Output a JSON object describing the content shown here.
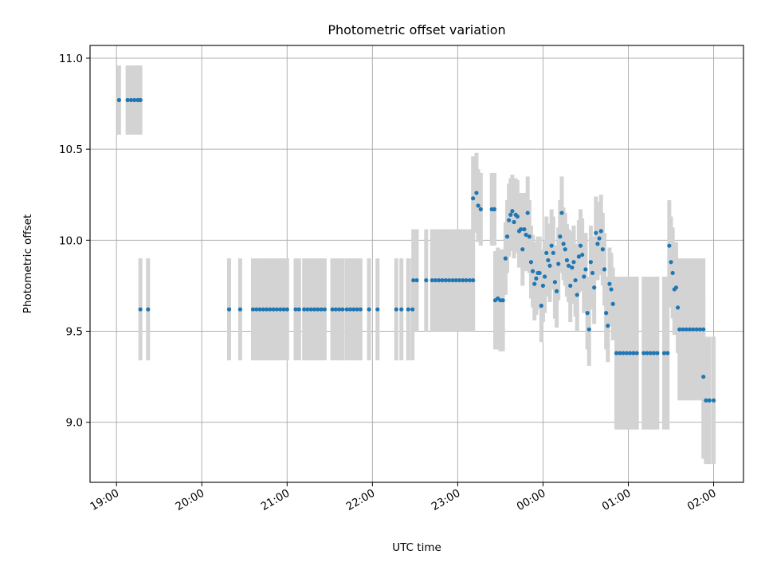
{
  "chart_data": {
    "type": "scatter",
    "title": "Photometric offset variation",
    "xlabel": "UTC time",
    "ylabel": "Photometric offset",
    "x_unit": "hours (UTC, continuing past midnight)",
    "xlim": [
      18.69,
      26.35
    ],
    "ylim": [
      8.67,
      11.07
    ],
    "x_ticks": [
      {
        "value": 19,
        "label": "19:00"
      },
      {
        "value": 20,
        "label": "20:00"
      },
      {
        "value": 21,
        "label": "21:00"
      },
      {
        "value": 22,
        "label": "22:00"
      },
      {
        "value": 23,
        "label": "23:00"
      },
      {
        "value": 24,
        "label": "00:00"
      },
      {
        "value": 25,
        "label": "01:00"
      },
      {
        "value": 26,
        "label": "02:00"
      }
    ],
    "y_ticks": [
      {
        "value": 9.0,
        "label": "9.0"
      },
      {
        "value": 9.5,
        "label": "9.5"
      },
      {
        "value": 10.0,
        "label": "10.0"
      },
      {
        "value": 10.5,
        "label": "10.5"
      },
      {
        "value": 11.0,
        "label": "11.0"
      }
    ],
    "grid": true,
    "point_color": "#1f77b4",
    "errorbar_color": "#d3d3d3",
    "points": [
      [
        19.03,
        10.77,
        0.19
      ],
      [
        19.13,
        10.77,
        0.19
      ],
      [
        19.17,
        10.77,
        0.19
      ],
      [
        19.21,
        10.77,
        0.19
      ],
      [
        19.25,
        10.77,
        0.19
      ],
      [
        19.28,
        10.77,
        0.19
      ],
      [
        19.28,
        9.62,
        0.28
      ],
      [
        19.37,
        9.62,
        0.28
      ],
      [
        20.32,
        9.62,
        0.28
      ],
      [
        20.45,
        9.62,
        0.28
      ],
      [
        20.6,
        9.62,
        0.28
      ],
      [
        20.64,
        9.62,
        0.28
      ],
      [
        20.68,
        9.62,
        0.28
      ],
      [
        20.72,
        9.62,
        0.28
      ],
      [
        20.76,
        9.62,
        0.28
      ],
      [
        20.8,
        9.62,
        0.28
      ],
      [
        20.84,
        9.62,
        0.28
      ],
      [
        20.88,
        9.62,
        0.28
      ],
      [
        20.92,
        9.62,
        0.28
      ],
      [
        20.96,
        9.62,
        0.28
      ],
      [
        21.0,
        9.62,
        0.28
      ],
      [
        21.1,
        9.62,
        0.28
      ],
      [
        21.14,
        9.62,
        0.28
      ],
      [
        21.2,
        9.62,
        0.28
      ],
      [
        21.24,
        9.62,
        0.28
      ],
      [
        21.28,
        9.62,
        0.28
      ],
      [
        21.32,
        9.62,
        0.28
      ],
      [
        21.36,
        9.62,
        0.28
      ],
      [
        21.4,
        9.62,
        0.28
      ],
      [
        21.44,
        9.62,
        0.28
      ],
      [
        21.53,
        9.62,
        0.28
      ],
      [
        21.57,
        9.62,
        0.28
      ],
      [
        21.61,
        9.62,
        0.28
      ],
      [
        21.65,
        9.62,
        0.28
      ],
      [
        21.7,
        9.62,
        0.28
      ],
      [
        21.74,
        9.62,
        0.28
      ],
      [
        21.78,
        9.62,
        0.28
      ],
      [
        21.82,
        9.62,
        0.28
      ],
      [
        21.86,
        9.62,
        0.28
      ],
      [
        21.96,
        9.62,
        0.28
      ],
      [
        22.06,
        9.62,
        0.28
      ],
      [
        22.28,
        9.62,
        0.28
      ],
      [
        22.34,
        9.62,
        0.28
      ],
      [
        22.42,
        9.62,
        0.28
      ],
      [
        22.47,
        9.62,
        0.28
      ],
      [
        22.48,
        9.78,
        0.28
      ],
      [
        22.52,
        9.78,
        0.28
      ],
      [
        22.63,
        9.78,
        0.28
      ],
      [
        22.7,
        9.78,
        0.28
      ],
      [
        22.74,
        9.78,
        0.28
      ],
      [
        22.78,
        9.78,
        0.28
      ],
      [
        22.82,
        9.78,
        0.28
      ],
      [
        22.86,
        9.78,
        0.28
      ],
      [
        22.9,
        9.78,
        0.28
      ],
      [
        22.94,
        9.78,
        0.28
      ],
      [
        22.98,
        9.78,
        0.28
      ],
      [
        23.02,
        9.78,
        0.28
      ],
      [
        23.06,
        9.78,
        0.28
      ],
      [
        23.1,
        9.78,
        0.28
      ],
      [
        23.14,
        9.78,
        0.28
      ],
      [
        23.18,
        9.78,
        0.28
      ],
      [
        23.18,
        10.23,
        0.23
      ],
      [
        23.22,
        10.26,
        0.22
      ],
      [
        23.24,
        10.19,
        0.2
      ],
      [
        23.27,
        10.17,
        0.2
      ],
      [
        23.4,
        10.17,
        0.2
      ],
      [
        23.43,
        10.17,
        0.2
      ],
      [
        23.44,
        9.67,
        0.27
      ],
      [
        23.47,
        9.68,
        0.28
      ],
      [
        23.5,
        9.67,
        0.28
      ],
      [
        23.53,
        9.67,
        0.28
      ],
      [
        23.56,
        9.9,
        0.2
      ],
      [
        23.58,
        10.02,
        0.2
      ],
      [
        23.6,
        10.11,
        0.2
      ],
      [
        23.62,
        10.14,
        0.2
      ],
      [
        23.64,
        10.16,
        0.2
      ],
      [
        23.66,
        10.1,
        0.2
      ],
      [
        23.68,
        10.14,
        0.2
      ],
      [
        23.7,
        10.13,
        0.2
      ],
      [
        23.72,
        10.05,
        0.2
      ],
      [
        23.74,
        10.06,
        0.2
      ],
      [
        23.76,
        9.95,
        0.2
      ],
      [
        23.78,
        10.06,
        0.2
      ],
      [
        23.8,
        10.03,
        0.2
      ],
      [
        23.82,
        10.15,
        0.2
      ],
      [
        23.84,
        10.02,
        0.2
      ],
      [
        23.86,
        9.88,
        0.2
      ],
      [
        23.88,
        9.83,
        0.2
      ],
      [
        23.9,
        9.76,
        0.2
      ],
      [
        23.92,
        9.79,
        0.2
      ],
      [
        23.94,
        9.82,
        0.2
      ],
      [
        23.96,
        9.82,
        0.2
      ],
      [
        23.98,
        9.64,
        0.2
      ],
      [
        24.0,
        9.75,
        0.2
      ],
      [
        24.02,
        9.8,
        0.2
      ],
      [
        24.04,
        9.93,
        0.2
      ],
      [
        24.06,
        9.89,
        0.2
      ],
      [
        24.08,
        9.86,
        0.2
      ],
      [
        24.1,
        9.97,
        0.2
      ],
      [
        24.12,
        9.93,
        0.2
      ],
      [
        24.14,
        9.77,
        0.2
      ],
      [
        24.16,
        9.72,
        0.2
      ],
      [
        24.18,
        9.87,
        0.2
      ],
      [
        24.2,
        10.02,
        0.2
      ],
      [
        24.22,
        10.15,
        0.2
      ],
      [
        24.24,
        9.98,
        0.2
      ],
      [
        24.26,
        9.95,
        0.2
      ],
      [
        24.28,
        9.89,
        0.2
      ],
      [
        24.3,
        9.86,
        0.2
      ],
      [
        24.32,
        9.75,
        0.2
      ],
      [
        24.34,
        9.85,
        0.2
      ],
      [
        24.36,
        9.88,
        0.2
      ],
      [
        24.38,
        9.78,
        0.2
      ],
      [
        24.4,
        9.7,
        0.2
      ],
      [
        24.42,
        9.91,
        0.2
      ],
      [
        24.44,
        9.97,
        0.2
      ],
      [
        24.46,
        9.92,
        0.2
      ],
      [
        24.48,
        9.8,
        0.2
      ],
      [
        24.5,
        9.84,
        0.2
      ],
      [
        24.52,
        9.6,
        0.2
      ],
      [
        24.54,
        9.51,
        0.2
      ],
      [
        24.56,
        9.88,
        0.2
      ],
      [
        24.58,
        9.82,
        0.2
      ],
      [
        24.6,
        9.74,
        0.2
      ],
      [
        24.62,
        10.04,
        0.2
      ],
      [
        24.64,
        9.98,
        0.2
      ],
      [
        24.66,
        10.01,
        0.2
      ],
      [
        24.68,
        10.05,
        0.2
      ],
      [
        24.7,
        9.95,
        0.2
      ],
      [
        24.72,
        9.84,
        0.2
      ],
      [
        24.74,
        9.6,
        0.2
      ],
      [
        24.76,
        9.53,
        0.2
      ],
      [
        24.78,
        9.76,
        0.2
      ],
      [
        24.8,
        9.73,
        0.2
      ],
      [
        24.82,
        9.65,
        0.2
      ],
      [
        24.86,
        9.38,
        0.42
      ],
      [
        24.9,
        9.38,
        0.42
      ],
      [
        24.94,
        9.38,
        0.42
      ],
      [
        24.98,
        9.38,
        0.42
      ],
      [
        25.02,
        9.38,
        0.42
      ],
      [
        25.06,
        9.38,
        0.42
      ],
      [
        25.1,
        9.38,
        0.42
      ],
      [
        25.18,
        9.38,
        0.42
      ],
      [
        25.22,
        9.38,
        0.42
      ],
      [
        25.26,
        9.38,
        0.42
      ],
      [
        25.3,
        9.38,
        0.42
      ],
      [
        25.34,
        9.38,
        0.42
      ],
      [
        25.42,
        9.38,
        0.42
      ],
      [
        25.46,
        9.38,
        0.42
      ],
      [
        25.48,
        9.97,
        0.25
      ],
      [
        25.5,
        9.88,
        0.25
      ],
      [
        25.52,
        9.82,
        0.25
      ],
      [
        25.54,
        9.73,
        0.25
      ],
      [
        25.56,
        9.74,
        0.25
      ],
      [
        25.58,
        9.63,
        0.25
      ],
      [
        25.6,
        9.51,
        0.39
      ],
      [
        25.64,
        9.51,
        0.39
      ],
      [
        25.68,
        9.51,
        0.39
      ],
      [
        25.72,
        9.51,
        0.39
      ],
      [
        25.76,
        9.51,
        0.39
      ],
      [
        25.8,
        9.51,
        0.39
      ],
      [
        25.84,
        9.51,
        0.39
      ],
      [
        25.88,
        9.51,
        0.39
      ],
      [
        25.88,
        9.25,
        0.45
      ],
      [
        25.91,
        9.12,
        0.35
      ],
      [
        25.95,
        9.12,
        0.35
      ],
      [
        26.0,
        9.12,
        0.35
      ]
    ]
  }
}
